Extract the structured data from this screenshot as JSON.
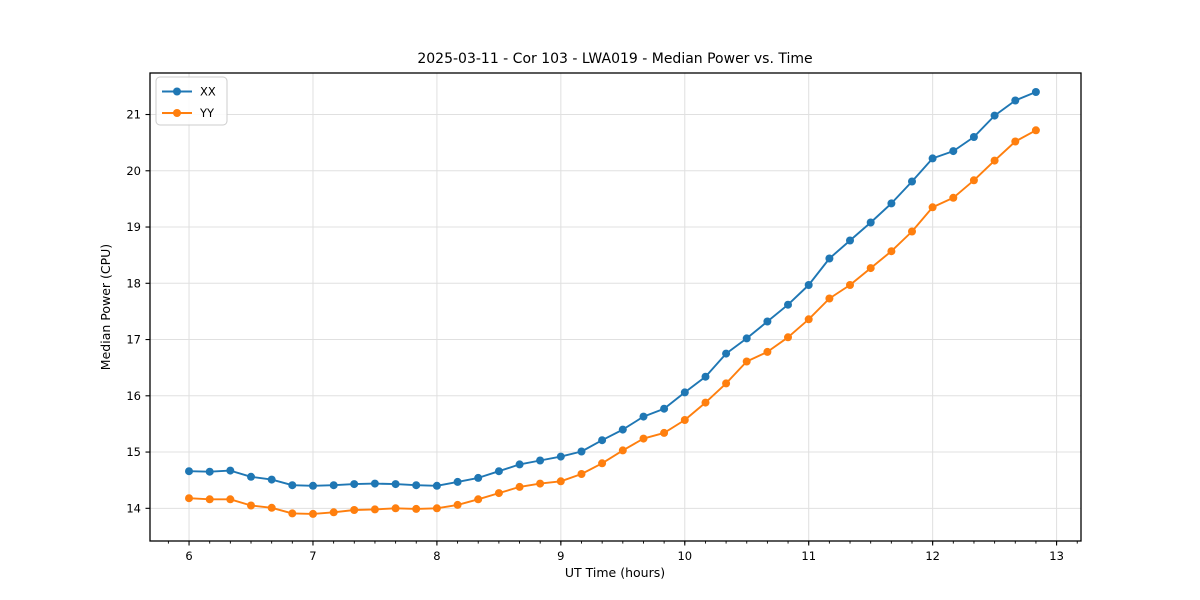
{
  "figure": {
    "title": "2025-03-11 - Cor 103 - LWA019 - Median Power vs. Time",
    "xlabel": "UT Time (hours)",
    "ylabel": "Median Power (CPU)",
    "background": "#ffffff",
    "spine_color": "#000000",
    "grid_color": "#e0e0e0"
  },
  "legend": {
    "items": [
      {
        "label": "XX",
        "color": "#1f77b4"
      },
      {
        "label": "YY",
        "color": "#ff7f0e"
      }
    ]
  },
  "chart_data": {
    "type": "line",
    "title": "2025-03-11 - Cor 103 - LWA019 - Median Power vs. Time",
    "xlabel": "UT Time (hours)",
    "ylabel": "Median Power (CPU)",
    "grid": true,
    "legend_position": "upper-left",
    "marker": "circle",
    "xlim": [
      5.685,
      13.197
    ],
    "ylim": [
      13.419,
      21.738
    ],
    "xticks": [
      6,
      7,
      8,
      9,
      10,
      11,
      12,
      13
    ],
    "yticks": [
      14,
      15,
      16,
      17,
      18,
      19,
      20,
      21
    ],
    "x_minor_step": 0.166667,
    "x": [
      6.0,
      6.167,
      6.333,
      6.5,
      6.667,
      6.833,
      7.0,
      7.167,
      7.333,
      7.5,
      7.667,
      7.833,
      8.0,
      8.167,
      8.333,
      8.5,
      8.667,
      8.833,
      9.0,
      9.167,
      9.333,
      9.5,
      9.667,
      9.833,
      10.0,
      10.167,
      10.333,
      10.5,
      10.667,
      10.833,
      11.0,
      11.167,
      11.333,
      11.5,
      11.667,
      11.833,
      12.0,
      12.167,
      12.333,
      12.5,
      12.667,
      12.833
    ],
    "series": [
      {
        "name": "XX",
        "color": "#1f77b4",
        "values": [
          14.66,
          14.65,
          14.67,
          14.56,
          14.51,
          14.41,
          14.4,
          14.41,
          14.43,
          14.44,
          14.43,
          14.41,
          14.4,
          14.47,
          14.54,
          14.66,
          14.78,
          14.85,
          14.92,
          15.01,
          15.21,
          15.4,
          15.63,
          15.77,
          16.06,
          16.34,
          16.75,
          17.02,
          17.32,
          17.62,
          17.97,
          18.44,
          18.76,
          19.08,
          19.42,
          19.81,
          20.22,
          20.35,
          20.6,
          20.98,
          21.25,
          21.4
        ]
      },
      {
        "name": "YY",
        "color": "#ff7f0e",
        "values": [
          14.18,
          14.16,
          14.16,
          14.05,
          14.01,
          13.91,
          13.9,
          13.93,
          13.97,
          13.98,
          14.0,
          13.99,
          14.0,
          14.06,
          14.16,
          14.27,
          14.38,
          14.44,
          14.48,
          14.61,
          14.8,
          15.03,
          15.24,
          15.34,
          15.57,
          15.88,
          16.22,
          16.61,
          16.78,
          17.04,
          17.36,
          17.73,
          17.97,
          18.27,
          18.57,
          18.92,
          19.35,
          19.52,
          19.83,
          20.18,
          20.52,
          20.72
        ]
      }
    ]
  }
}
